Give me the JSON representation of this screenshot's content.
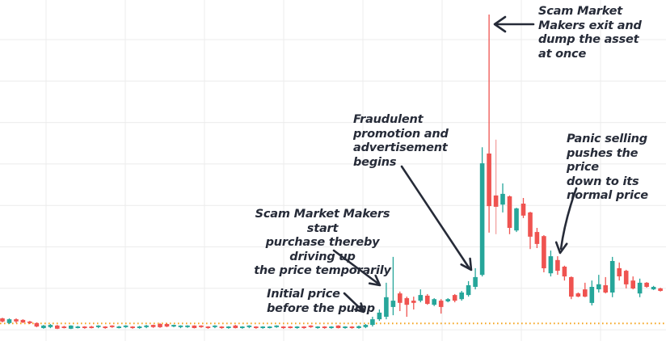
{
  "chart_data": {
    "type": "candlestick",
    "grid": true,
    "legend": "none",
    "ylim": [
      0,
      105
    ],
    "initial_price_level": 2.0,
    "colors": {
      "background": "#ffffff",
      "up": "#26a69a",
      "down": "#ef5350",
      "light_wick": "#f2a1a0",
      "price_line": "#f5a623",
      "grid": "#ececec",
      "annotation_text": "#262b38"
    },
    "light_wick_indices": [
      72
    ],
    "candles": [
      [
        3.6,
        3.8,
        2.3,
        2.6
      ],
      [
        2.1,
        3.6,
        1.8,
        3.3
      ],
      [
        3.3,
        3.6,
        2.1,
        2.6
      ],
      [
        3.1,
        3.3,
        2.1,
        2.3
      ],
      [
        2.6,
        2.8,
        1.8,
        2.1
      ],
      [
        2.1,
        2.3,
        0.8,
        1.0
      ],
      [
        0.5,
        1.5,
        0.3,
        1.3
      ],
      [
        0.8,
        1.8,
        0.5,
        1.5
      ],
      [
        1.3,
        1.5,
        0.2,
        0.3
      ],
      [
        1.0,
        1.2,
        0.4,
        0.5
      ],
      [
        0.3,
        1.4,
        0.2,
        1.3
      ],
      [
        0.5,
        1.2,
        0.4,
        1.0
      ],
      [
        1.0,
        1.1,
        0.3,
        0.5
      ],
      [
        1.0,
        1.2,
        0.4,
        0.5
      ],
      [
        0.8,
        1.4,
        0.5,
        1.3
      ],
      [
        1.0,
        1.1,
        0.3,
        0.5
      ],
      [
        1.3,
        1.4,
        0.6,
        0.8
      ],
      [
        0.5,
        1.2,
        0.4,
        1.0
      ],
      [
        0.8,
        1.4,
        0.6,
        1.3
      ],
      [
        1.0,
        1.1,
        0.3,
        0.5
      ],
      [
        0.5,
        1.2,
        0.3,
        1.0
      ],
      [
        0.8,
        1.5,
        0.5,
        1.3
      ],
      [
        1.5,
        1.6,
        0.6,
        0.8
      ],
      [
        1.8,
        2.1,
        0.6,
        0.8
      ],
      [
        1.8,
        2.0,
        0.8,
        1.0
      ],
      [
        1.0,
        1.6,
        0.8,
        1.5
      ],
      [
        0.8,
        1.4,
        0.5,
        1.3
      ],
      [
        0.8,
        1.4,
        0.6,
        1.3
      ],
      [
        1.3,
        1.4,
        0.4,
        0.5
      ],
      [
        1.3,
        1.4,
        0.6,
        0.8
      ],
      [
        1.0,
        1.1,
        0.3,
        0.5
      ],
      [
        0.8,
        1.4,
        0.5,
        1.3
      ],
      [
        1.0,
        1.1,
        0.3,
        0.5
      ],
      [
        0.5,
        1.1,
        0.3,
        1.0
      ],
      [
        1.3,
        1.5,
        0.4,
        0.5
      ],
      [
        0.5,
        1.1,
        0.3,
        1.0
      ],
      [
        0.8,
        1.4,
        0.5,
        1.3
      ],
      [
        1.0,
        1.1,
        0.3,
        0.5
      ],
      [
        0.5,
        1.1,
        0.3,
        1.0
      ],
      [
        0.5,
        1.1,
        0.4,
        1.0
      ],
      [
        0.8,
        1.4,
        0.6,
        1.3
      ],
      [
        1.0,
        1.1,
        0.3,
        0.5
      ],
      [
        1.0,
        1.1,
        0.4,
        0.5
      ],
      [
        0.5,
        1.1,
        0.3,
        1.0
      ],
      [
        1.0,
        1.1,
        0.3,
        0.5
      ],
      [
        1.3,
        1.4,
        0.6,
        0.8
      ],
      [
        0.5,
        1.1,
        0.3,
        1.0
      ],
      [
        1.0,
        1.1,
        0.3,
        0.5
      ],
      [
        0.5,
        1.1,
        0.3,
        1.0
      ],
      [
        1.3,
        1.4,
        0.4,
        0.5
      ],
      [
        0.5,
        1.1,
        0.3,
        1.0
      ],
      [
        1.0,
        1.1,
        0.3,
        0.5
      ],
      [
        0.5,
        1.3,
        0.3,
        1.1
      ],
      [
        0.8,
        1.8,
        0.5,
        1.5
      ],
      [
        1.5,
        4.1,
        1.0,
        3.3
      ],
      [
        3.3,
        6.4,
        2.8,
        5.4
      ],
      [
        4.1,
        14.9,
        3.3,
        10.3
      ],
      [
        7.2,
        23.1,
        4.6,
        9.2
      ],
      [
        11.5,
        12.1,
        5.9,
        8.5
      ],
      [
        10.0,
        10.5,
        4.1,
        7.9
      ],
      [
        9.2,
        10.5,
        6.4,
        8.5
      ],
      [
        9.2,
        12.8,
        8.7,
        11.0
      ],
      [
        10.8,
        11.3,
        7.9,
        8.2
      ],
      [
        7.9,
        10.0,
        7.5,
        9.7
      ],
      [
        9.2,
        9.7,
        5.1,
        7.2
      ],
      [
        9.0,
        10.0,
        8.7,
        9.7
      ],
      [
        11.0,
        11.3,
        8.7,
        9.2
      ],
      [
        9.7,
        12.3,
        9.2,
        11.8
      ],
      [
        11.0,
        15.4,
        10.5,
        14.1
      ],
      [
        13.6,
        19.5,
        12.8,
        16.7
      ],
      [
        17.4,
        57.9,
        16.9,
        52.8
      ],
      [
        55.9,
        100.0,
        30.8,
        39.2
      ],
      [
        42.6,
        60.3,
        30.3,
        39.0
      ],
      [
        39.7,
        46.4,
        37.2,
        43.1
      ],
      [
        42.3,
        42.6,
        30.3,
        32.3
      ],
      [
        31.5,
        38.7,
        31.0,
        38.5
      ],
      [
        40.0,
        41.8,
        35.4,
        36.2
      ],
      [
        37.2,
        37.4,
        25.6,
        29.5
      ],
      [
        31.0,
        32.3,
        25.9,
        27.2
      ],
      [
        29.7,
        30.0,
        18.2,
        19.5
      ],
      [
        17.9,
        25.1,
        16.9,
        23.3
      ],
      [
        22.1,
        23.3,
        17.4,
        18.7
      ],
      [
        20.0,
        20.3,
        15.6,
        16.9
      ],
      [
        16.7,
        16.9,
        9.7,
        10.5
      ],
      [
        11.5,
        11.8,
        10.3,
        10.5
      ],
      [
        12.8,
        14.9,
        10.3,
        10.5
      ],
      [
        8.5,
        15.6,
        7.7,
        13.6
      ],
      [
        12.8,
        17.4,
        11.8,
        14.4
      ],
      [
        14.1,
        16.7,
        11.5,
        11.8
      ],
      [
        11.8,
        23.1,
        10.3,
        21.8
      ],
      [
        19.5,
        21.3,
        15.6,
        16.9
      ],
      [
        18.7,
        19.0,
        13.1,
        14.4
      ],
      [
        15.6,
        16.9,
        12.8,
        13.1
      ],
      [
        11.5,
        16.2,
        10.3,
        14.9
      ],
      [
        14.9,
        15.1,
        13.3,
        13.6
      ],
      [
        12.8,
        13.9,
        12.6,
        13.6
      ],
      [
        13.1,
        13.3,
        12.1,
        12.3
      ]
    ],
    "annotations": [
      {
        "id": "exit-dump",
        "text": "Scam Market\nMakers exit and\ndump the asset\nat once"
      },
      {
        "id": "fraudulent-promotion",
        "text": "Fraudulent\npromotion and\nadvertisement\nbegins"
      },
      {
        "id": "smm-start-purchase",
        "text": "Scam Market Makers start\npurchase thereby driving up\nthe price temporarily"
      },
      {
        "id": "initial-price",
        "text": "Initial price\nbefore the pump"
      },
      {
        "id": "panic-selling",
        "text": "Panic selling\npushes the price\ndown to its\nnormal price"
      }
    ]
  }
}
